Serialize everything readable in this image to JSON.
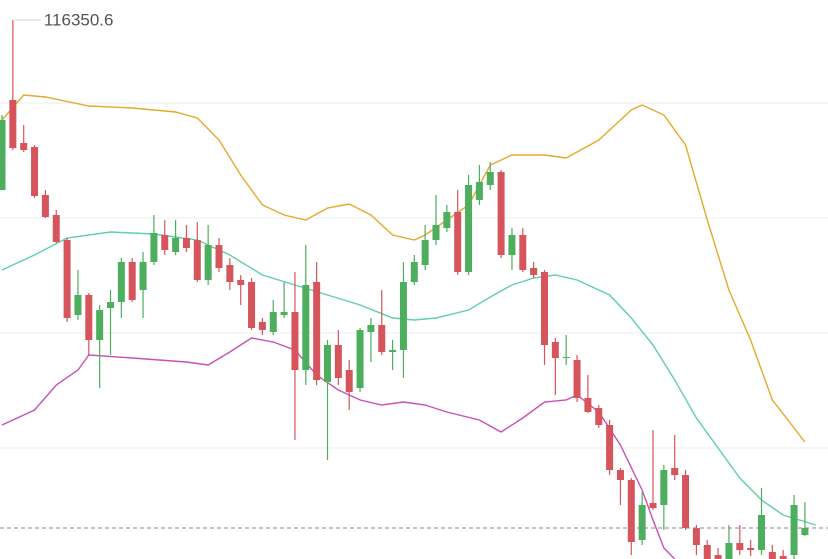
{
  "chart_data": {
    "type": "candlestick",
    "up_color": "#4dae5e",
    "down_color": "#d6545b",
    "ylim": [
      110960,
      116550
    ],
    "open": [
      114650,
      115550,
      115120,
      115080,
      114600,
      114400,
      114150,
      113400,
      113600,
      113150,
      113470,
      113530,
      113930,
      113650,
      113930,
      114200,
      114030,
      114170,
      114150,
      113750,
      114100,
      113900,
      113750,
      113730,
      113330,
      113230,
      113400,
      113430,
      112850,
      113730,
      112730,
      113100,
      112850,
      112670,
      113230,
      113300,
      113030,
      113050,
      113730,
      113900,
      114150,
      114270,
      114430,
      113830,
      114550,
      114700,
      114830,
      114000,
      114200,
      113870,
      113830,
      113130,
      112970,
      112950,
      112570,
      112470,
      112300,
      111850,
      111750,
      111150,
      111520,
      111500,
      111870,
      111800,
      111270,
      111100,
      111000,
      110960,
      111120,
      111070,
      111050,
      111030,
      110990,
      111000,
      111200
    ],
    "close": [
      115350,
      115070,
      115050,
      114590,
      114380,
      114130,
      113370,
      113600,
      113150,
      113450,
      113530,
      113930,
      113550,
      113930,
      114220,
      114050,
      114170,
      114070,
      113750,
      114100,
      113870,
      113730,
      113700,
      113270,
      113250,
      113430,
      113430,
      112850,
      113700,
      112750,
      113100,
      112770,
      112630,
      113250,
      113300,
      113030,
      113050,
      113730,
      113930,
      114150,
      114300,
      114430,
      113830,
      114700,
      114730,
      114830,
      114000,
      114200,
      113850,
      113800,
      113100,
      112970,
      112980,
      112570,
      112430,
      112300,
      111850,
      111750,
      111130,
      111500,
      111470,
      111850,
      111800,
      111270,
      111100,
      110960,
      110960,
      111120,
      111050,
      111050,
      111400,
      110960,
      110960,
      111500,
      111270
    ],
    "high": [
      115400,
      116350.6,
      115300,
      115100,
      114650,
      114450,
      114170,
      113850,
      113620,
      113500,
      113650,
      113970,
      113970,
      114030,
      114400,
      114350,
      114350,
      114300,
      114330,
      114300,
      114170,
      113970,
      113800,
      113770,
      113370,
      113550,
      113730,
      113830,
      114100,
      113930,
      113150,
      113250,
      112950,
      113270,
      113370,
      113650,
      113150,
      113930,
      114000,
      114300,
      114600,
      114500,
      114650,
      114800,
      114900,
      114930,
      114850,
      114270,
      114270,
      113930,
      113850,
      113170,
      113200,
      113000,
      112800,
      112500,
      112350,
      111870,
      111770,
      111630,
      112250,
      111900,
      112200,
      111850,
      111300,
      111150,
      111070,
      111300,
      111300,
      111150,
      111670,
      111100,
      111050,
      111600,
      111530
    ],
    "low": [
      114650,
      115050,
      115030,
      114570,
      114370,
      114120,
      113330,
      113350,
      113000,
      112670,
      113000,
      113370,
      113530,
      113370,
      113900,
      114000,
      114000,
      114030,
      113730,
      113700,
      113830,
      113650,
      113500,
      113250,
      113200,
      113200,
      113370,
      112150,
      112700,
      112700,
      111950,
      112700,
      112450,
      112630,
      112930,
      113000,
      112850,
      112770,
      113700,
      113850,
      114100,
      114230,
      113800,
      113800,
      114500,
      114650,
      113970,
      113850,
      113830,
      113770,
      112900,
      112600,
      112900,
      112530,
      112420,
      112270,
      111800,
      111500,
      111000,
      111100,
      111450,
      111250,
      111750,
      111250,
      111000,
      110960,
      110960,
      110960,
      111000,
      110990,
      111000,
      110960,
      110960,
      110960,
      111190
    ],
    "bands": [
      {
        "color": "#e6a92a",
        "x": [
          0,
          2,
          4,
          8,
          12,
          16,
          18,
          20,
          22,
          24,
          26,
          28,
          30,
          32,
          34,
          36,
          38,
          39,
          41,
          43,
          45,
          47,
          50,
          52,
          55,
          58,
          59,
          61,
          63,
          65,
          67,
          69,
          71,
          74
        ],
        "values": [
          115350,
          115600,
          115580,
          115490,
          115470,
          115430,
          115370,
          115150,
          114800,
          114500,
          114400,
          114350,
          114470,
          114510,
          114400,
          114200,
          114150,
          114200,
          114350,
          114500,
          114900,
          115000,
          115000,
          114970,
          115150,
          115450,
          115500,
          115400,
          115100,
          114350,
          113650,
          113150,
          112550,
          112130
        ]
      },
      {
        "color": "#5fcfa8",
        "x": [
          0,
          3,
          6,
          10,
          14,
          18,
          21,
          24,
          27,
          30,
          33,
          36,
          38,
          40,
          43,
          45,
          47,
          49,
          51,
          53,
          56,
          58,
          60,
          62,
          64,
          66,
          68,
          70,
          72,
          75
        ],
        "values": [
          113850,
          114000,
          114170,
          114230,
          114210,
          114150,
          114000,
          113800,
          113700,
          113600,
          113500,
          113370,
          113350,
          113370,
          113450,
          113580,
          113700,
          113770,
          113800,
          113750,
          113600,
          113370,
          113100,
          112750,
          112370,
          112070,
          111770,
          111550,
          111400,
          111300
        ]
      },
      {
        "color": "#c850b8",
        "x": [
          0,
          3,
          5,
          7,
          8,
          12,
          17,
          19,
          21,
          23,
          25,
          27,
          29,
          31,
          33,
          35,
          37,
          39,
          41,
          44,
          46,
          48,
          50,
          52,
          53,
          55,
          57,
          59,
          60,
          61,
          62
        ],
        "values": [
          112300,
          112450,
          112700,
          112850,
          113000,
          112970,
          112930,
          112900,
          113030,
          113170,
          113130,
          113050,
          112800,
          112650,
          112550,
          112500,
          112530,
          112500,
          112430,
          112350,
          112230,
          112370,
          112530,
          112550,
          112600,
          112430,
          112100,
          111650,
          111350,
          111070,
          110960
        ]
      }
    ]
  }
}
